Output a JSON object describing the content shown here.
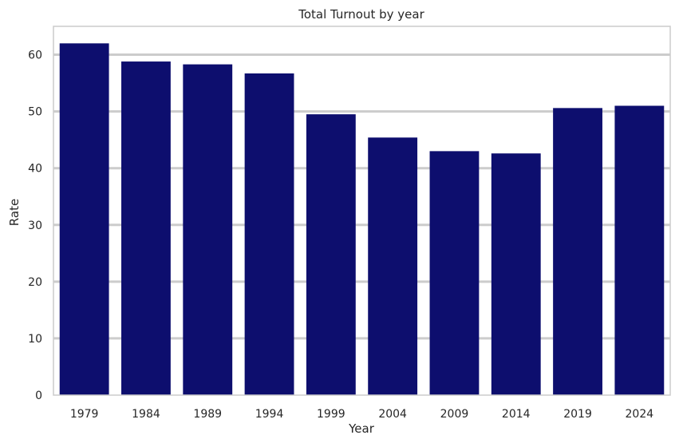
{
  "chart_data": {
    "type": "bar",
    "title": "Total Turnout by year",
    "xlabel": "Year",
    "ylabel": "Rate",
    "categories": [
      "1979",
      "1984",
      "1989",
      "1994",
      "1999",
      "2004",
      "2009",
      "2014",
      "2019",
      "2024"
    ],
    "values": [
      62.0,
      58.8,
      58.3,
      56.7,
      49.5,
      45.4,
      43.0,
      42.6,
      50.6,
      51.0
    ],
    "ylim": [
      0,
      65
    ],
    "yticks": [
      0,
      10,
      20,
      30,
      40,
      50,
      60
    ],
    "grid": "horizontal",
    "colors": {
      "bar": "#0d0e6e",
      "grid": "#cccccc",
      "frame": "#cccccc"
    }
  }
}
